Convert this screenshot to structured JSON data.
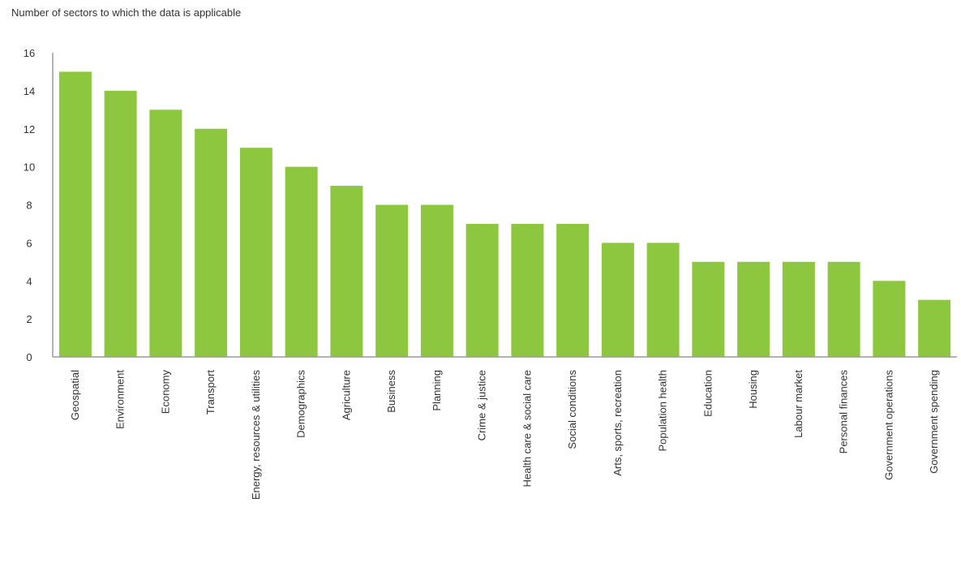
{
  "chart_data": {
    "type": "bar",
    "title": "Number of sectors to which the data is applicable",
    "xlabel": "",
    "ylabel": "",
    "categories": [
      "Geospatial",
      "Environment",
      "Economy",
      "Transport",
      "Energy, resources & utilities",
      "Demographics",
      "Agriculture",
      "Business",
      "Planning",
      "Crime & justice",
      "Health care & social care",
      "Social conditions",
      "Arts, sports, recreation",
      "Population health",
      "Education",
      "Housing",
      "Labour market",
      "Personal finances",
      "Government operations",
      "Government spending"
    ],
    "values": [
      15,
      14,
      13,
      12,
      11,
      10,
      9,
      8,
      8,
      7,
      7,
      7,
      6,
      6,
      5,
      5,
      5,
      5,
      4,
      3
    ],
    "ylim": [
      0,
      16
    ],
    "yticks": [
      0,
      2,
      4,
      6,
      8,
      10,
      12,
      14,
      16
    ],
    "grid": false,
    "legend": "none",
    "bar_color": "#8dc63f",
    "axis_color": "#9a9a9a"
  }
}
